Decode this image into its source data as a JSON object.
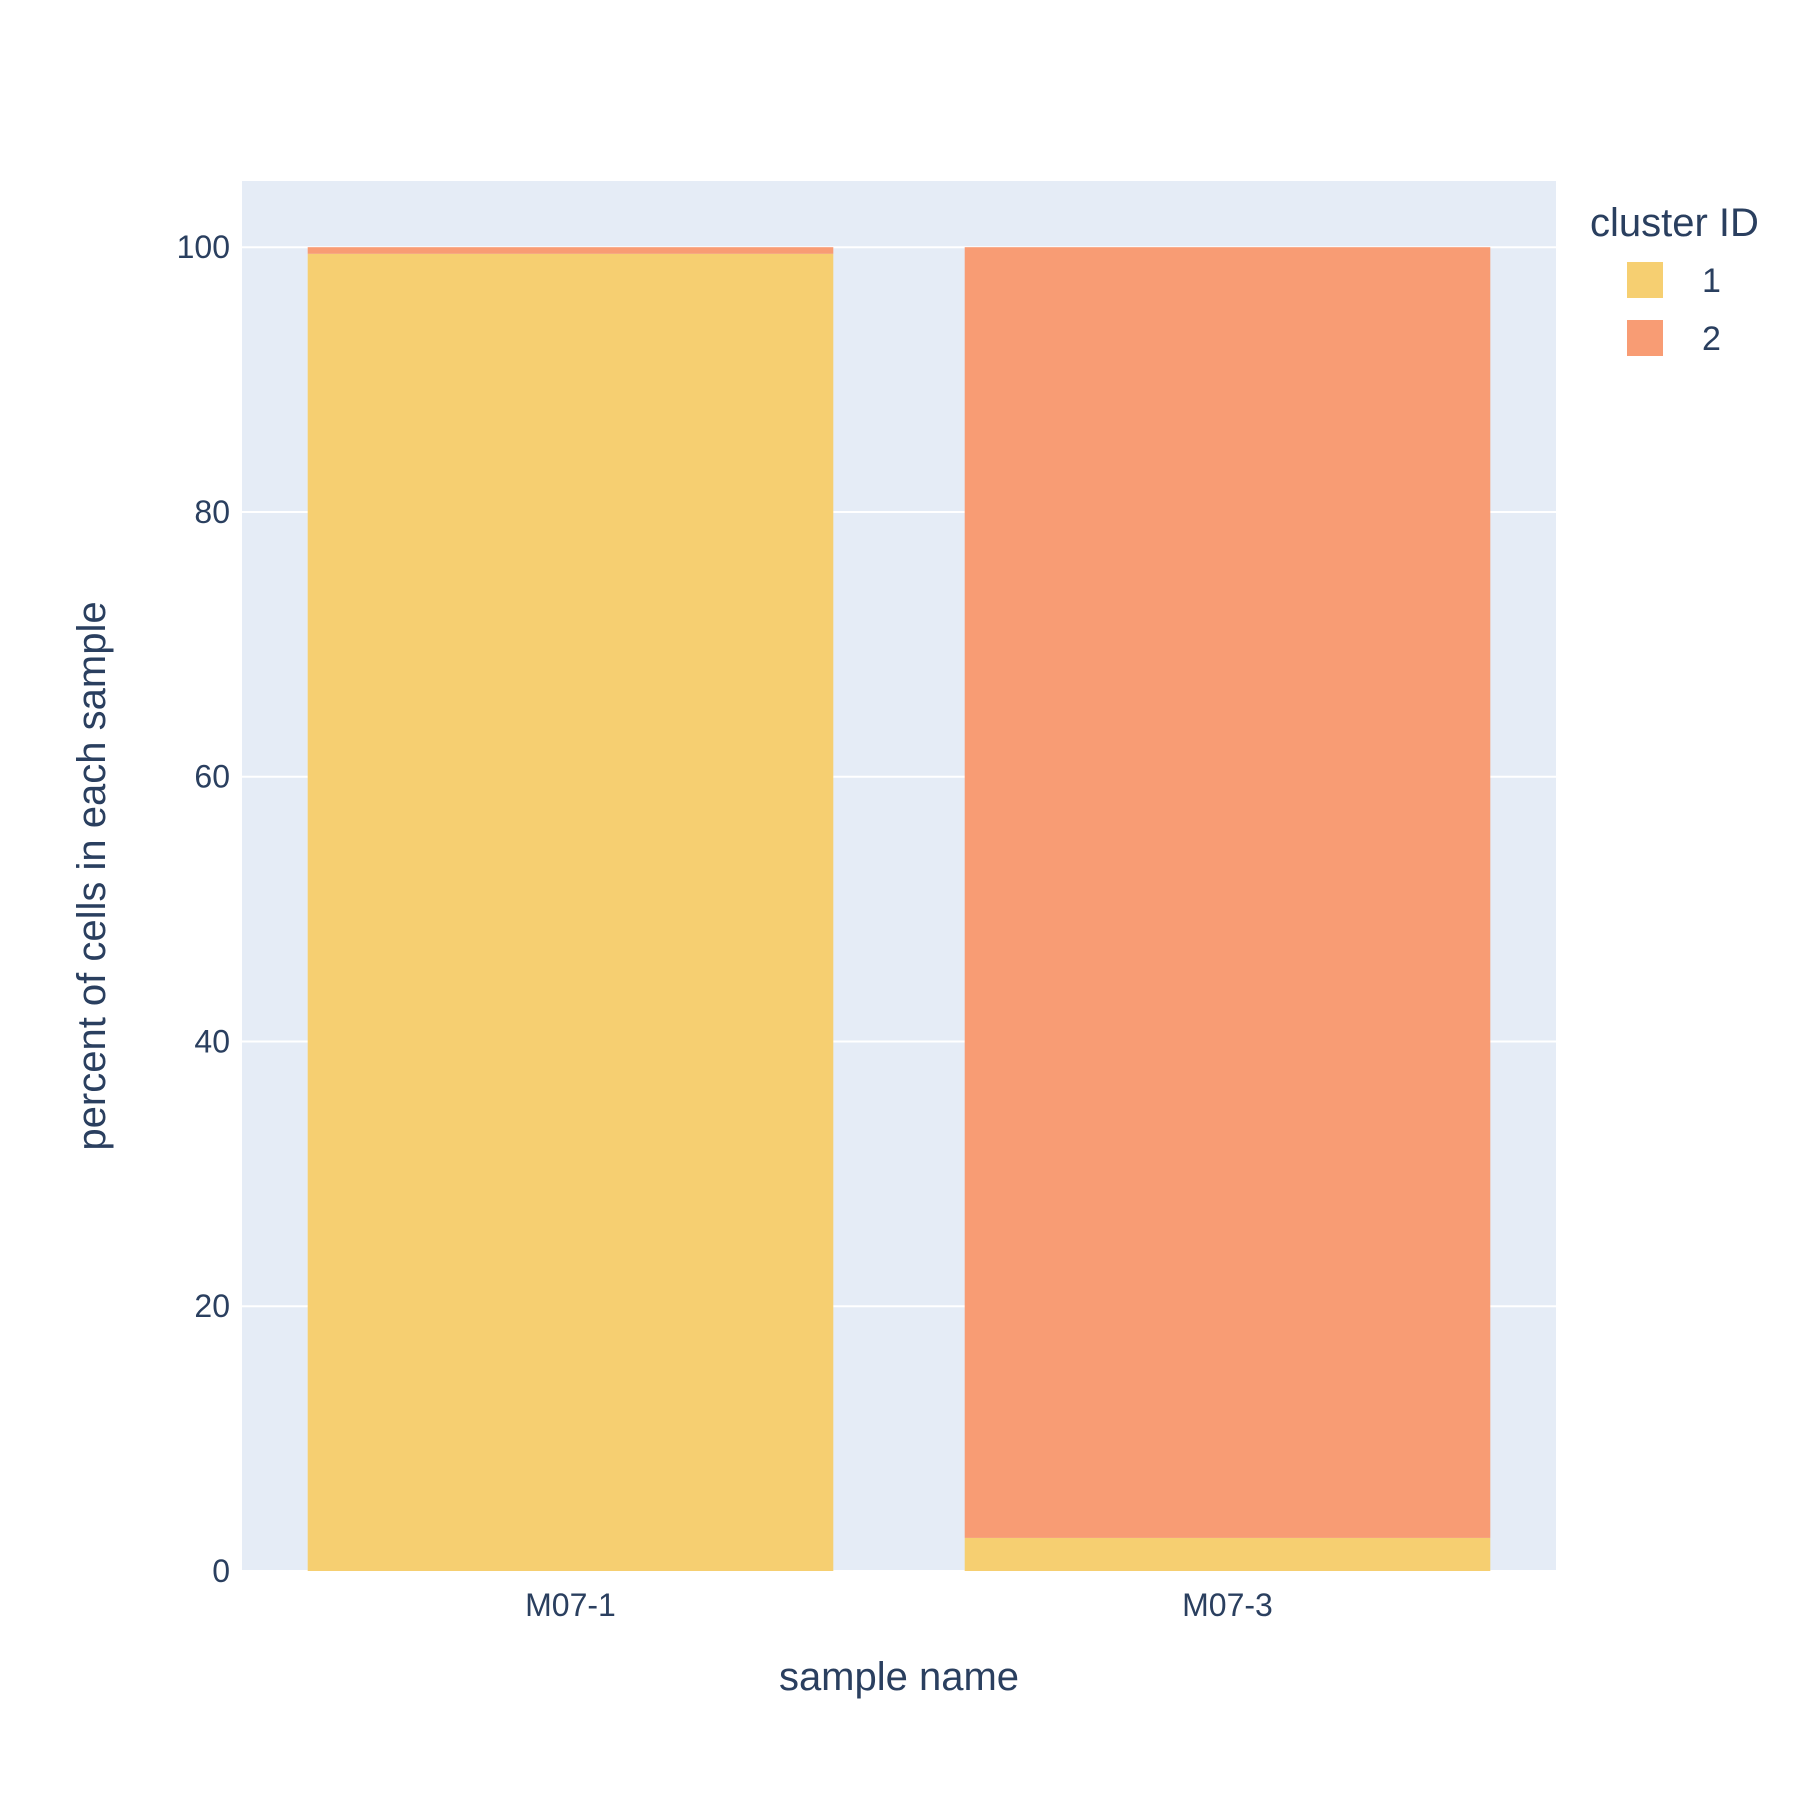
{
  "chart_data": {
    "type": "bar",
    "barmode": "stack",
    "categories": [
      "M07-1",
      "M07-3"
    ],
    "series": [
      {
        "name": "1",
        "values": [
          99.5,
          2.5
        ],
        "color": "#f6cf71"
      },
      {
        "name": "2",
        "values": [
          0.5,
          97.5
        ],
        "color": "#f89c74"
      }
    ],
    "title": "",
    "xlabel": "sample name",
    "ylabel": "percent of cells in each sample",
    "ylim": [
      0,
      105
    ],
    "yticks": [
      0,
      20,
      40,
      60,
      80,
      100
    ],
    "grid": true,
    "legend": {
      "title": "cluster ID",
      "position": "top-right"
    },
    "colors": {
      "plot_background": "#e5ecf6",
      "gridline": "#ffffff",
      "text": "#2a3f5f"
    }
  }
}
